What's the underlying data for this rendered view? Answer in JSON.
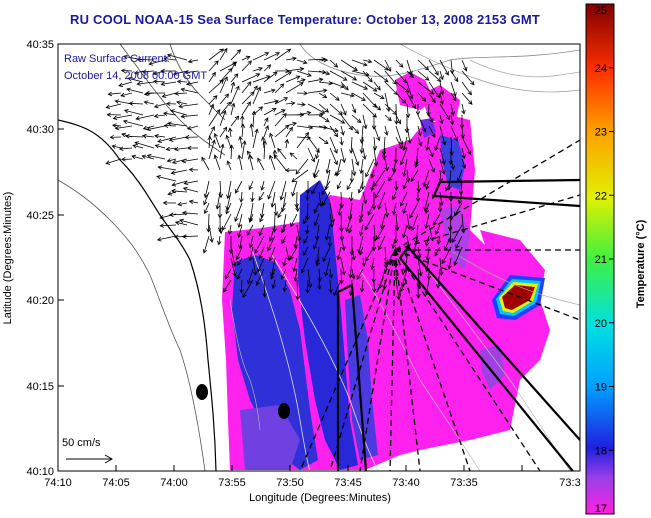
{
  "title": "RU COOL  NOAA-15  Sea Surface Temperature:  October 13, 2008 2153 GMT",
  "annotation": {
    "line1": "Raw Surface Current:",
    "line2": "October 14, 2008 00:00 GMT"
  },
  "scale_label": "50 cm/s",
  "axes": {
    "xlabel": "Longitude (Degrees:Minutes)",
    "ylabel": "Latitude (Degrees:Minutes)",
    "x_ticks": [
      "74:10",
      "74:05",
      "74:00",
      "73:55",
      "73:50",
      "73:45",
      "73:40",
      "73:35",
      "73:3"
    ],
    "y_ticks": [
      "40:35",
      "40:30",
      "40:25",
      "40:20",
      "40:15",
      "40:10"
    ]
  },
  "colorbar": {
    "label": "Temperature (°C)",
    "min": 17,
    "max": 25,
    "ticks": [
      "25",
      "24",
      "23",
      "22",
      "21",
      "20",
      "19",
      "18",
      "17"
    ]
  },
  "colors": {
    "title": "#1a1a9c",
    "warm": "#a00000",
    "cold": "#ff20d0"
  }
}
